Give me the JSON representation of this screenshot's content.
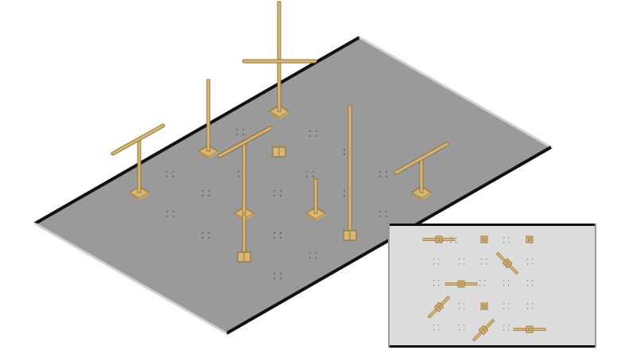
{
  "scene": {
    "description_free": true,
    "colors": {
      "background": "#ffffff",
      "slab_top": "#9a9a9a",
      "slab_edge_dark": "#111111",
      "slab_edge_light": "#d8d8d8",
      "wood": "#d8b775",
      "wood_dark": "#8a6a2e",
      "inset_bg": "#dcdcdc",
      "inset_border": "#111111"
    },
    "posts": [
      {
        "name": "tall-crossbar-post",
        "has_crossbar": true
      },
      {
        "name": "left-tee-post",
        "has_crossbar": true
      },
      {
        "name": "back-plain-post",
        "has_crossbar": false
      },
      {
        "name": "diagonal-beam-post",
        "has_crossbar": true
      },
      {
        "name": "lower-center-post",
        "has_crossbar": false
      },
      {
        "name": "short-center-post",
        "has_crossbar": false
      },
      {
        "name": "tall-thin-post",
        "has_crossbar": false
      },
      {
        "name": "right-tee-post",
        "has_crossbar": true
      }
    ],
    "plan_view_items": 9
  }
}
